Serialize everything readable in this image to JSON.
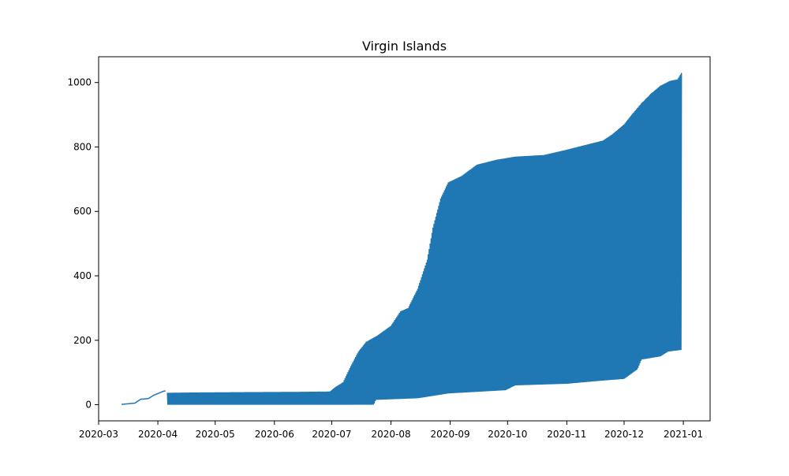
{
  "chart_data": {
    "type": "line",
    "title": "Virgin Islands",
    "xlabel": "",
    "ylabel": "",
    "xlim": [
      "2020-03-01",
      "2021-01-15"
    ],
    "ylim": [
      -50,
      1080
    ],
    "grid": false,
    "legend": "none",
    "x_ticks": [
      "2020-03",
      "2020-04",
      "2020-05",
      "2020-06",
      "2020-07",
      "2020-08",
      "2020-09",
      "2020-10",
      "2020-11",
      "2020-12",
      "2021-01"
    ],
    "y_ticks": [
      0,
      200,
      400,
      600,
      800,
      1000
    ],
    "series": [
      {
        "color": "#1f77b4",
        "description_points": {
          "cumulative_upper_envelope": [
            [
              "2020-03-13",
              1
            ],
            [
              "2020-03-20",
              5
            ],
            [
              "2020-03-23",
              17
            ],
            [
              "2020-03-27",
              19
            ],
            [
              "2020-03-30",
              30
            ],
            [
              "2020-04-02",
              37
            ],
            [
              "2020-04-04",
              42
            ],
            [
              "2020-04-05",
              43
            ],
            [
              "2020-04-06",
              37
            ],
            [
              "2020-04-20",
              38
            ],
            [
              "2020-05-15",
              39
            ],
            [
              "2020-06-15",
              40
            ],
            [
              "2020-06-30",
              41
            ],
            [
              "2020-07-03",
              55
            ],
            [
              "2020-07-07",
              70
            ],
            [
              "2020-07-11",
              120
            ],
            [
              "2020-07-15",
              165
            ],
            [
              "2020-07-19",
              195
            ],
            [
              "2020-07-25",
              215
            ],
            [
              "2020-08-01",
              245
            ],
            [
              "2020-08-06",
              290
            ],
            [
              "2020-08-10",
              300
            ],
            [
              "2020-08-15",
              360
            ],
            [
              "2020-08-20",
              450
            ],
            [
              "2020-08-23",
              550
            ],
            [
              "2020-08-27",
              640
            ],
            [
              "2020-08-31",
              690
            ],
            [
              "2020-09-07",
              710
            ],
            [
              "2020-09-15",
              745
            ],
            [
              "2020-09-25",
              760
            ],
            [
              "2020-10-05",
              770
            ],
            [
              "2020-10-20",
              775
            ],
            [
              "2020-10-31",
              790
            ],
            [
              "2020-11-10",
              805
            ],
            [
              "2020-11-20",
              820
            ],
            [
              "2020-11-25",
              840
            ],
            [
              "2020-12-01",
              870
            ],
            [
              "2020-12-05",
              900
            ],
            [
              "2020-12-10",
              935
            ],
            [
              "2020-12-15",
              965
            ],
            [
              "2020-12-20",
              990
            ],
            [
              "2020-12-25",
              1005
            ],
            [
              "2020-12-29",
              1010
            ],
            [
              "2020-12-31",
              1030
            ]
          ],
          "lower_envelope": [
            [
              "2020-04-06",
              0
            ],
            [
              "2020-07-23",
              0
            ],
            [
              "2020-07-24",
              15
            ],
            [
              "2020-08-15",
              20
            ],
            [
              "2020-08-31",
              35
            ],
            [
              "2020-09-30",
              45
            ],
            [
              "2020-10-05",
              60
            ],
            [
              "2020-11-01",
              65
            ],
            [
              "2020-11-20",
              75
            ],
            [
              "2020-12-01",
              80
            ],
            [
              "2020-12-08",
              110
            ],
            [
              "2020-12-10",
              140
            ],
            [
              "2020-12-20",
              150
            ],
            [
              "2020-12-24",
              165
            ],
            [
              "2020-12-31",
              170
            ]
          ]
        }
      }
    ]
  }
}
